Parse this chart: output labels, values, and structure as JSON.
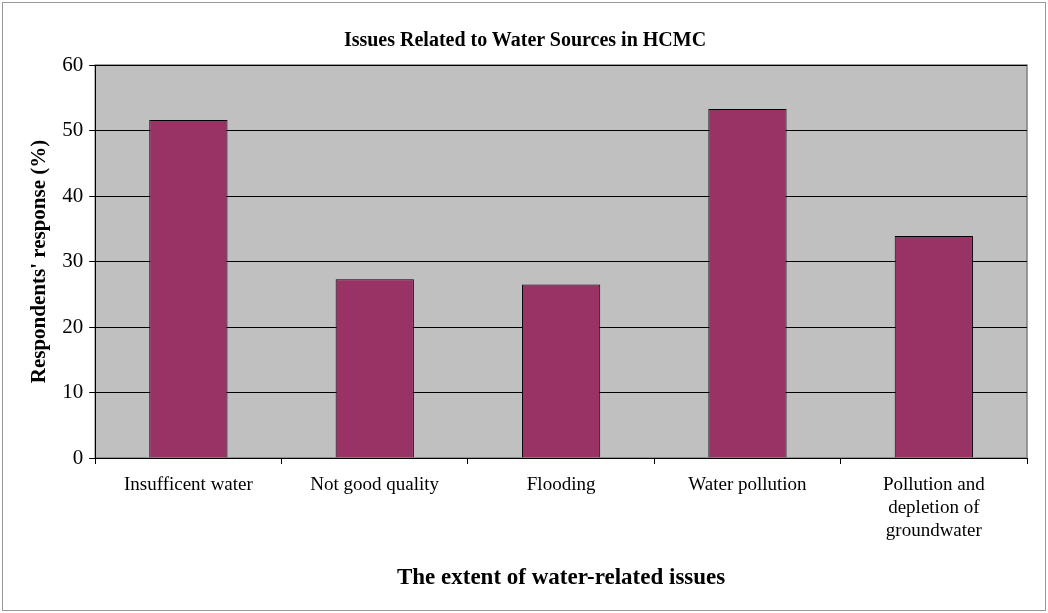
{
  "chart_data": {
    "type": "bar",
    "title": "Issues Related to Water Sources in HCMC",
    "xlabel": "The extent of water-related issues",
    "ylabel": "Respondents' response (%)",
    "categories": [
      "Insufficent water",
      "Not good quality",
      "Flooding",
      "Water pollution",
      "Pollution and depletion of groundwater"
    ],
    "values": [
      51.6,
      27.3,
      26.5,
      53.3,
      33.9
    ],
    "color": "#993366",
    "ylim": [
      0,
      60
    ],
    "yticks": [
      0,
      10,
      20,
      30,
      40,
      50,
      60
    ],
    "grid": "y",
    "legend": false
  }
}
